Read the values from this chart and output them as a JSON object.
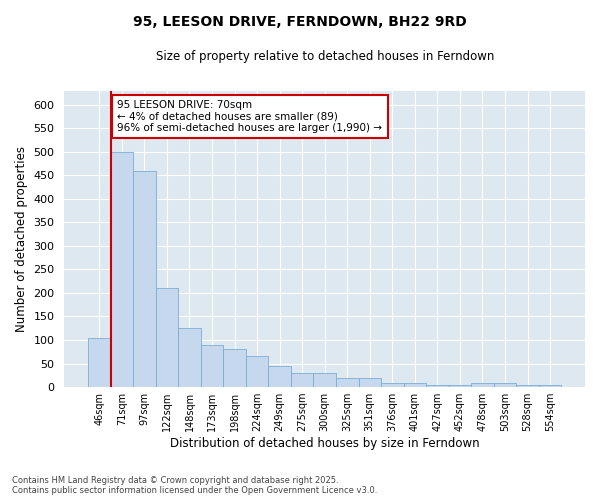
{
  "title": "95, LEESON DRIVE, FERNDOWN, BH22 9RD",
  "subtitle": "Size of property relative to detached houses in Ferndown",
  "xlabel": "Distribution of detached houses by size in Ferndown",
  "ylabel": "Number of detached properties",
  "bar_color": "#c5d8ed",
  "bar_edge_color": "#7aadd4",
  "background_color": "#dde8f0",
  "grid_color": "#ffffff",
  "annotation_line_color": "#cc0000",
  "annotation_box_color": "#cc0000",
  "annotation_text": "95 LEESON DRIVE: 70sqm\n← 4% of detached houses are smaller (89)\n96% of semi-detached houses are larger (1,990) →",
  "footer": "Contains HM Land Registry data © Crown copyright and database right 2025.\nContains public sector information licensed under the Open Government Licence v3.0.",
  "categories": [
    "46sqm",
    "71sqm",
    "97sqm",
    "122sqm",
    "148sqm",
    "173sqm",
    "198sqm",
    "224sqm",
    "249sqm",
    "275sqm",
    "300sqm",
    "325sqm",
    "351sqm",
    "376sqm",
    "401sqm",
    "427sqm",
    "452sqm",
    "478sqm",
    "503sqm",
    "528sqm",
    "554sqm"
  ],
  "bar_values": [
    105,
    500,
    460,
    210,
    125,
    90,
    80,
    65,
    45,
    30,
    30,
    20,
    20,
    8,
    8,
    5,
    5,
    8,
    8,
    5,
    5
  ],
  "ylim": [
    0,
    630
  ],
  "figsize": [
    6.0,
    5.0
  ],
  "dpi": 100,
  "red_line_x": 0.5
}
